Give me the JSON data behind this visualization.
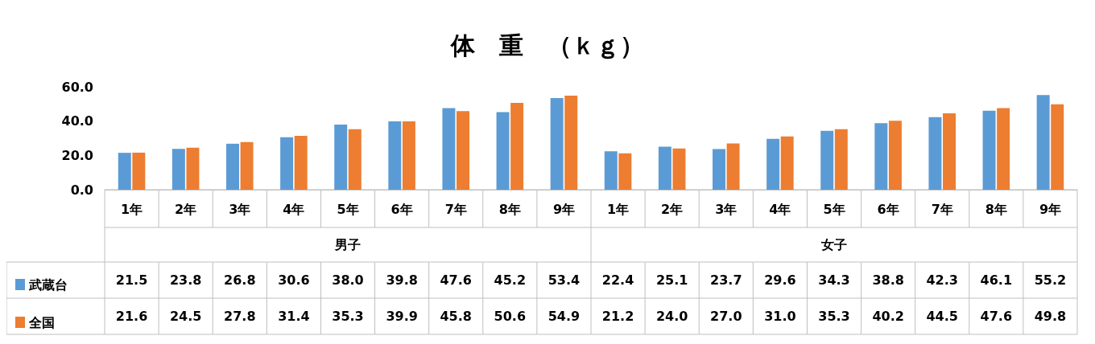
{
  "chart_data": {
    "type": "bar",
    "title": "体　重　（ｋｇ）",
    "categories": [
      "1年",
      "2年",
      "3年",
      "4年",
      "5年",
      "6年",
      "7年",
      "8年",
      "9年",
      "1年",
      "2年",
      "3年",
      "4年",
      "5年",
      "6年",
      "7年",
      "8年",
      "9年"
    ],
    "annotations": [
      "男子",
      "女子"
    ],
    "series": [
      {
        "name": "武蔵台",
        "color": "#5b9bd5",
        "values": [
          21.5,
          23.8,
          26.8,
          30.6,
          38.0,
          39.8,
          47.6,
          45.2,
          53.4,
          22.4,
          25.1,
          23.7,
          29.6,
          34.3,
          38.8,
          42.3,
          46.1,
          55.2
        ],
        "value_labels": [
          "21.5",
          "23.8",
          "26.8",
          "30.6",
          "38.0",
          "39.8",
          "47.6",
          "45.2",
          "53.4",
          "22.4",
          "25.1",
          "23.7",
          "29.6",
          "34.3",
          "38.8",
          "42.3",
          "46.1",
          "55.2"
        ]
      },
      {
        "name": "全国",
        "color": "#ed7d31",
        "values": [
          21.6,
          24.5,
          27.8,
          31.4,
          35.3,
          39.9,
          45.8,
          50.6,
          54.9,
          21.2,
          24.0,
          27.0,
          31.0,
          35.3,
          40.2,
          44.5,
          47.6,
          49.8
        ],
        "value_labels": [
          "21.6",
          "24.5",
          "27.8",
          "31.4",
          "35.3",
          "39.9",
          "45.8",
          "50.6",
          "54.9",
          "21.2",
          "24.0",
          "27.0",
          "31.0",
          "35.3",
          "40.2",
          "44.5",
          "47.6",
          "49.8"
        ]
      }
    ],
    "ylim": [
      0,
      60
    ],
    "yticks": [
      {
        "value": 0,
        "label": "0.0"
      },
      {
        "value": 20,
        "label": "20.0"
      },
      {
        "value": 40,
        "label": "40.0"
      },
      {
        "value": 60,
        "label": "60.0"
      }
    ],
    "grid": false,
    "legend": "bottom left"
  }
}
